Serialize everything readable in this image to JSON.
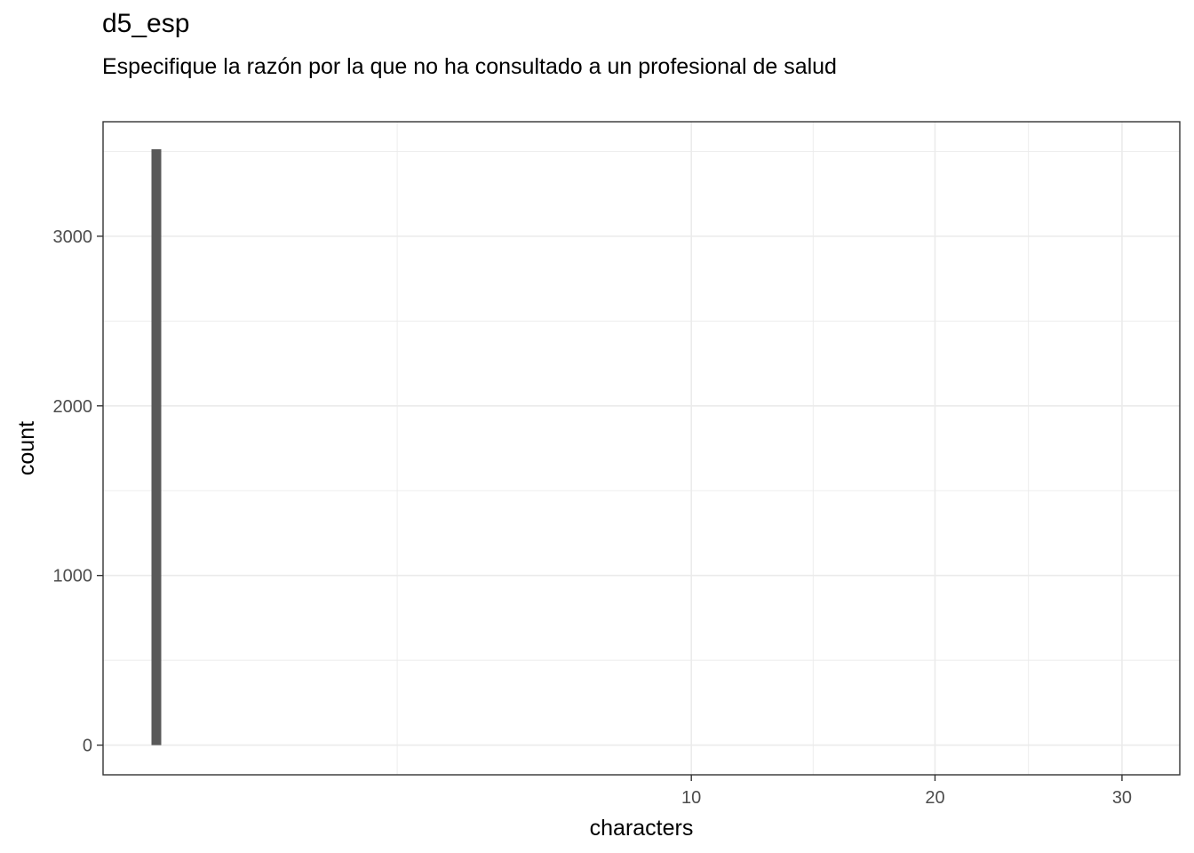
{
  "chart_data": {
    "type": "bar",
    "title": "d5_esp",
    "subtitle": "Especifique la razón por la que no ha consultado a un profesional de salud",
    "xlabel": "characters",
    "ylabel": "count",
    "x_scale": "sqrt",
    "xlim": [
      0,
      33.5
    ],
    "ylim": [
      -175,
      3675
    ],
    "x_ticks": [
      10,
      20,
      30
    ],
    "x_tick_labels": [
      "10",
      "20",
      "30"
    ],
    "y_ticks": [
      0,
      1000,
      2000,
      3000
    ],
    "y_tick_labels": [
      "0",
      "1000",
      "2000",
      "3000"
    ],
    "grid": true,
    "bars": [
      {
        "x": 0,
        "count": 3513
      }
    ],
    "colors": {
      "bar": "#595959",
      "grid": "#ebebeb",
      "panel_border": "#333333"
    }
  }
}
